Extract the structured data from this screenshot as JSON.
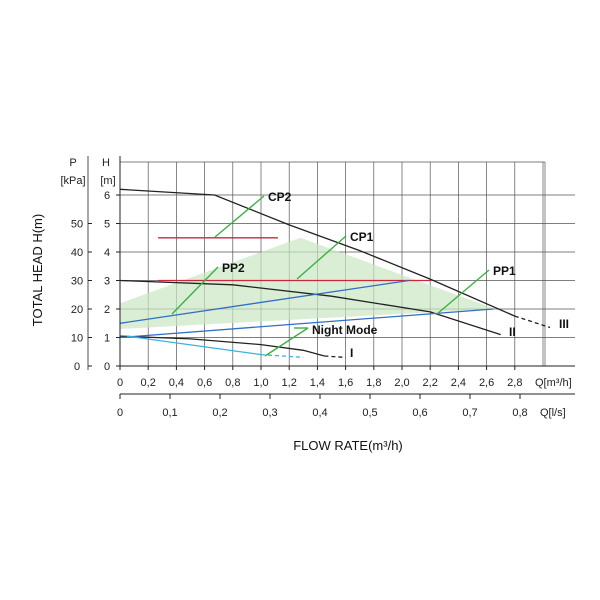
{
  "chart_data": {
    "type": "line",
    "axes": {
      "head_unit": "[m]",
      "head_symbol": "H",
      "pressure_symbol": "P",
      "pressure_unit": "[kPa]",
      "head_ticks": [
        "0",
        "1",
        "2",
        "3",
        "4",
        "5",
        "6"
      ],
      "pressure_ticks": [
        "0",
        "10",
        "20",
        "30",
        "40",
        "50"
      ],
      "flow_m3h_ticks": [
        "0",
        "0,2",
        "0,4",
        "0,6",
        "0,8",
        "1,0",
        "1,2",
        "1,4",
        "1,6",
        "1,8",
        "2,0",
        "2,2",
        "2,4",
        "2,6",
        "2,8"
      ],
      "flow_m3h_unit": "Q[m³/h]",
      "flow_ls_ticks": [
        "0",
        "0,1",
        "0,2",
        "0,3",
        "0,4",
        "0,5",
        "0,6",
        "0,7",
        "0,8"
      ],
      "flow_ls_unit": "Q[l/s]",
      "ylabel": "TOTAL HEAD H(m)",
      "xlabel": "FLOW RATE(m³/h)",
      "xlim": [
        0,
        3.0
      ],
      "ylim": [
        0,
        6.5
      ],
      "grid": true
    },
    "series": [
      {
        "name": "I",
        "color": "#222222",
        "dashed_tail": true,
        "x": [
          0,
          0.5,
          1.0,
          1.3,
          1.45
        ],
        "y": [
          1.05,
          0.95,
          0.75,
          0.55,
          0.35
        ],
        "tail_x": [
          1.45,
          1.6
        ],
        "tail_y": [
          0.35,
          0.3
        ]
      },
      {
        "name": "II",
        "color": "#222222",
        "dashed_tail": false,
        "x": [
          0,
          0.8,
          1.5,
          2.2,
          2.7
        ],
        "y": [
          3.0,
          2.85,
          2.45,
          1.9,
          1.1
        ],
        "tail_x": [],
        "tail_y": []
      },
      {
        "name": "III",
        "color": "#222222",
        "dashed_tail": true,
        "x": [
          0,
          0.67,
          1.2,
          1.7,
          2.2,
          2.8
        ],
        "y": [
          6.2,
          6.0,
          4.95,
          4.05,
          3.05,
          1.75
        ],
        "tail_x": [
          2.8,
          3.05
        ],
        "tail_y": [
          1.75,
          1.35
        ]
      },
      {
        "name": "CP2",
        "color": "#c8283a",
        "dashed_tail": false,
        "x": [
          0.27,
          1.12
        ],
        "y": [
          4.5,
          4.5
        ],
        "tail_x": [],
        "tail_y": []
      },
      {
        "name": "CP1",
        "color": "#c8283a",
        "dashed_tail": false,
        "x": [
          0.27,
          2.2
        ],
        "y": [
          3.0,
          3.0
        ],
        "tail_x": [],
        "tail_y": []
      },
      {
        "name": "PP2",
        "color": "#2f6fc6",
        "dashed_tail": false,
        "x": [
          0,
          2.05
        ],
        "y": [
          1.5,
          3.0
        ],
        "tail_x": [],
        "tail_y": []
      },
      {
        "name": "PP1",
        "color": "#2f6fc6",
        "dashed_tail": false,
        "x": [
          0,
          2.65
        ],
        "y": [
          1.0,
          2.0
        ],
        "tail_x": [],
        "tail_y": []
      },
      {
        "name": "Night Mode",
        "color": "#36b3e0",
        "dashed_tail": true,
        "x": [
          0.05,
          1.0
        ],
        "y": [
          1.05,
          0.4
        ],
        "tail_x": [
          1.0,
          1.3
        ],
        "tail_y": [
          0.4,
          0.3
        ]
      }
    ],
    "labels": [
      "CP2",
      "CP1",
      "PP2",
      "PP1",
      "Night Mode",
      "I",
      "II",
      "III"
    ]
  }
}
